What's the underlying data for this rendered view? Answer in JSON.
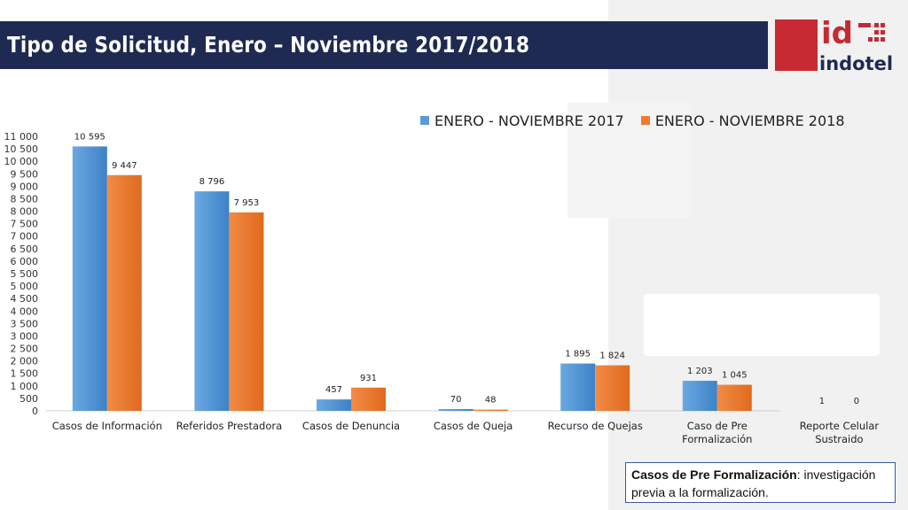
{
  "title": "Tipo de Solicitud, Enero – Noviembre 2017/2018",
  "logo": {
    "top": "id",
    "bottom": "indotel"
  },
  "note": {
    "term": "Casos de Pre Formalización",
    "definition": ": investigación previa a la formalización."
  },
  "colors": {
    "series_2017": "#5b9bd5",
    "series_2018": "#ed7d31",
    "header": "#1e2a52",
    "brand_red": "#c62932"
  },
  "chart_data": {
    "type": "bar",
    "title": "",
    "xlabel": "",
    "ylabel": "",
    "ylim": [
      0,
      11000
    ],
    "ytick_step": 500,
    "grid": false,
    "legend": "top-right",
    "categories": [
      [
        "Casos de Información"
      ],
      [
        "Referidos Prestadora"
      ],
      [
        "Casos de Denuncia"
      ],
      [
        "Casos de Queja"
      ],
      [
        "Recurso de Quejas"
      ],
      [
        "Caso de Pre",
        "Formalización"
      ],
      [
        "Reporte Celular",
        "Sustraido"
      ]
    ],
    "series": [
      {
        "name": "ENERO - NOVIEMBRE 2017",
        "values": [
          10595,
          8796,
          457,
          70,
          1895,
          1203,
          1
        ]
      },
      {
        "name": "ENERO - NOVIEMBRE 2018",
        "values": [
          9447,
          7953,
          931,
          48,
          1824,
          1045,
          0
        ]
      }
    ]
  }
}
